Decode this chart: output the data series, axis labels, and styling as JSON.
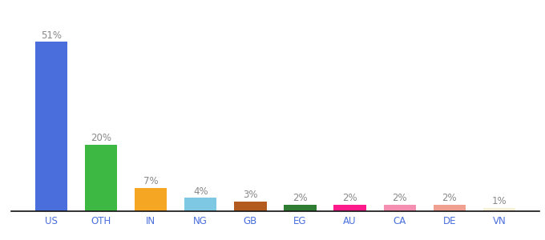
{
  "categories": [
    "US",
    "OTH",
    "IN",
    "NG",
    "GB",
    "EG",
    "AU",
    "CA",
    "DE",
    "VN"
  ],
  "values": [
    51,
    20,
    7,
    4,
    3,
    2,
    2,
    2,
    2,
    1
  ],
  "bar_colors": [
    "#4a6fdc",
    "#3db843",
    "#f5a623",
    "#7ec8e3",
    "#b35a1f",
    "#2e7d32",
    "#ff1a8c",
    "#f48fb1",
    "#f0a090",
    "#f5f0d8"
  ],
  "labels": [
    "51%",
    "20%",
    "7%",
    "4%",
    "3%",
    "2%",
    "2%",
    "2%",
    "2%",
    "1%"
  ],
  "label_color": "#888888",
  "label_fontsize": 8.5,
  "tick_fontsize": 8.5,
  "background_color": "#ffffff",
  "ylim": [
    0,
    60
  ]
}
